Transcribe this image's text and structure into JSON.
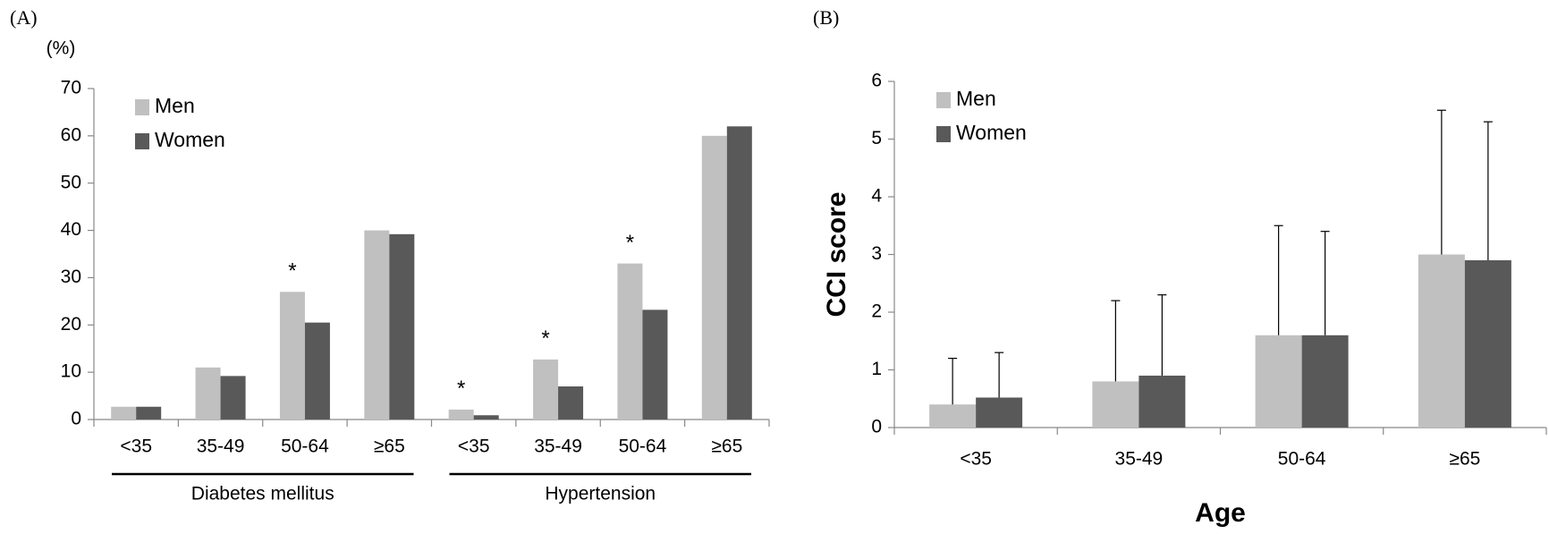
{
  "chart_data": [
    {
      "type": "bar",
      "panel": "(A)",
      "y_unit": "(%)",
      "groups": [
        {
          "label": "Diabetes mellitus",
          "categories": [
            "<35",
            "35-49",
            "50-64",
            "≥65"
          ]
        },
        {
          "label": "Hypertension",
          "categories": [
            "<35",
            "35-49",
            "50-64",
            "≥65"
          ]
        }
      ],
      "series": [
        {
          "name": "Men",
          "color": "#c0c0c0",
          "values": [
            2.7,
            11,
            27,
            40,
            2.1,
            12.7,
            33,
            60
          ]
        },
        {
          "name": "Women",
          "color": "#595959",
          "values": [
            2.7,
            9.2,
            20.5,
            39.2,
            0.9,
            7,
            23.2,
            62
          ]
        }
      ],
      "markers": [
        null,
        null,
        "*",
        null,
        "*",
        "*",
        "*",
        null
      ],
      "ylim": [
        0,
        70
      ],
      "yticks": [
        0,
        10,
        20,
        30,
        40,
        50,
        60,
        70
      ],
      "grid": false
    },
    {
      "type": "bar",
      "panel": "(B)",
      "ylabel": "CCI score",
      "xlabel": "Age",
      "categories": [
        "<35",
        "35-49",
        "50-64",
        "≥65"
      ],
      "series": [
        {
          "name": "Men",
          "color": "#c0c0c0",
          "values": [
            0.4,
            0.8,
            1.6,
            3.0
          ],
          "errors": [
            0.8,
            1.4,
            1.9,
            2.5
          ]
        },
        {
          "name": "Women",
          "color": "#595959",
          "values": [
            0.52,
            0.9,
            1.6,
            2.9
          ],
          "errors": [
            0.78,
            1.4,
            1.8,
            2.4
          ]
        }
      ],
      "ylim": [
        0,
        6
      ],
      "yticks": [
        0,
        1,
        2,
        3,
        4,
        5,
        6
      ],
      "grid": false
    }
  ]
}
